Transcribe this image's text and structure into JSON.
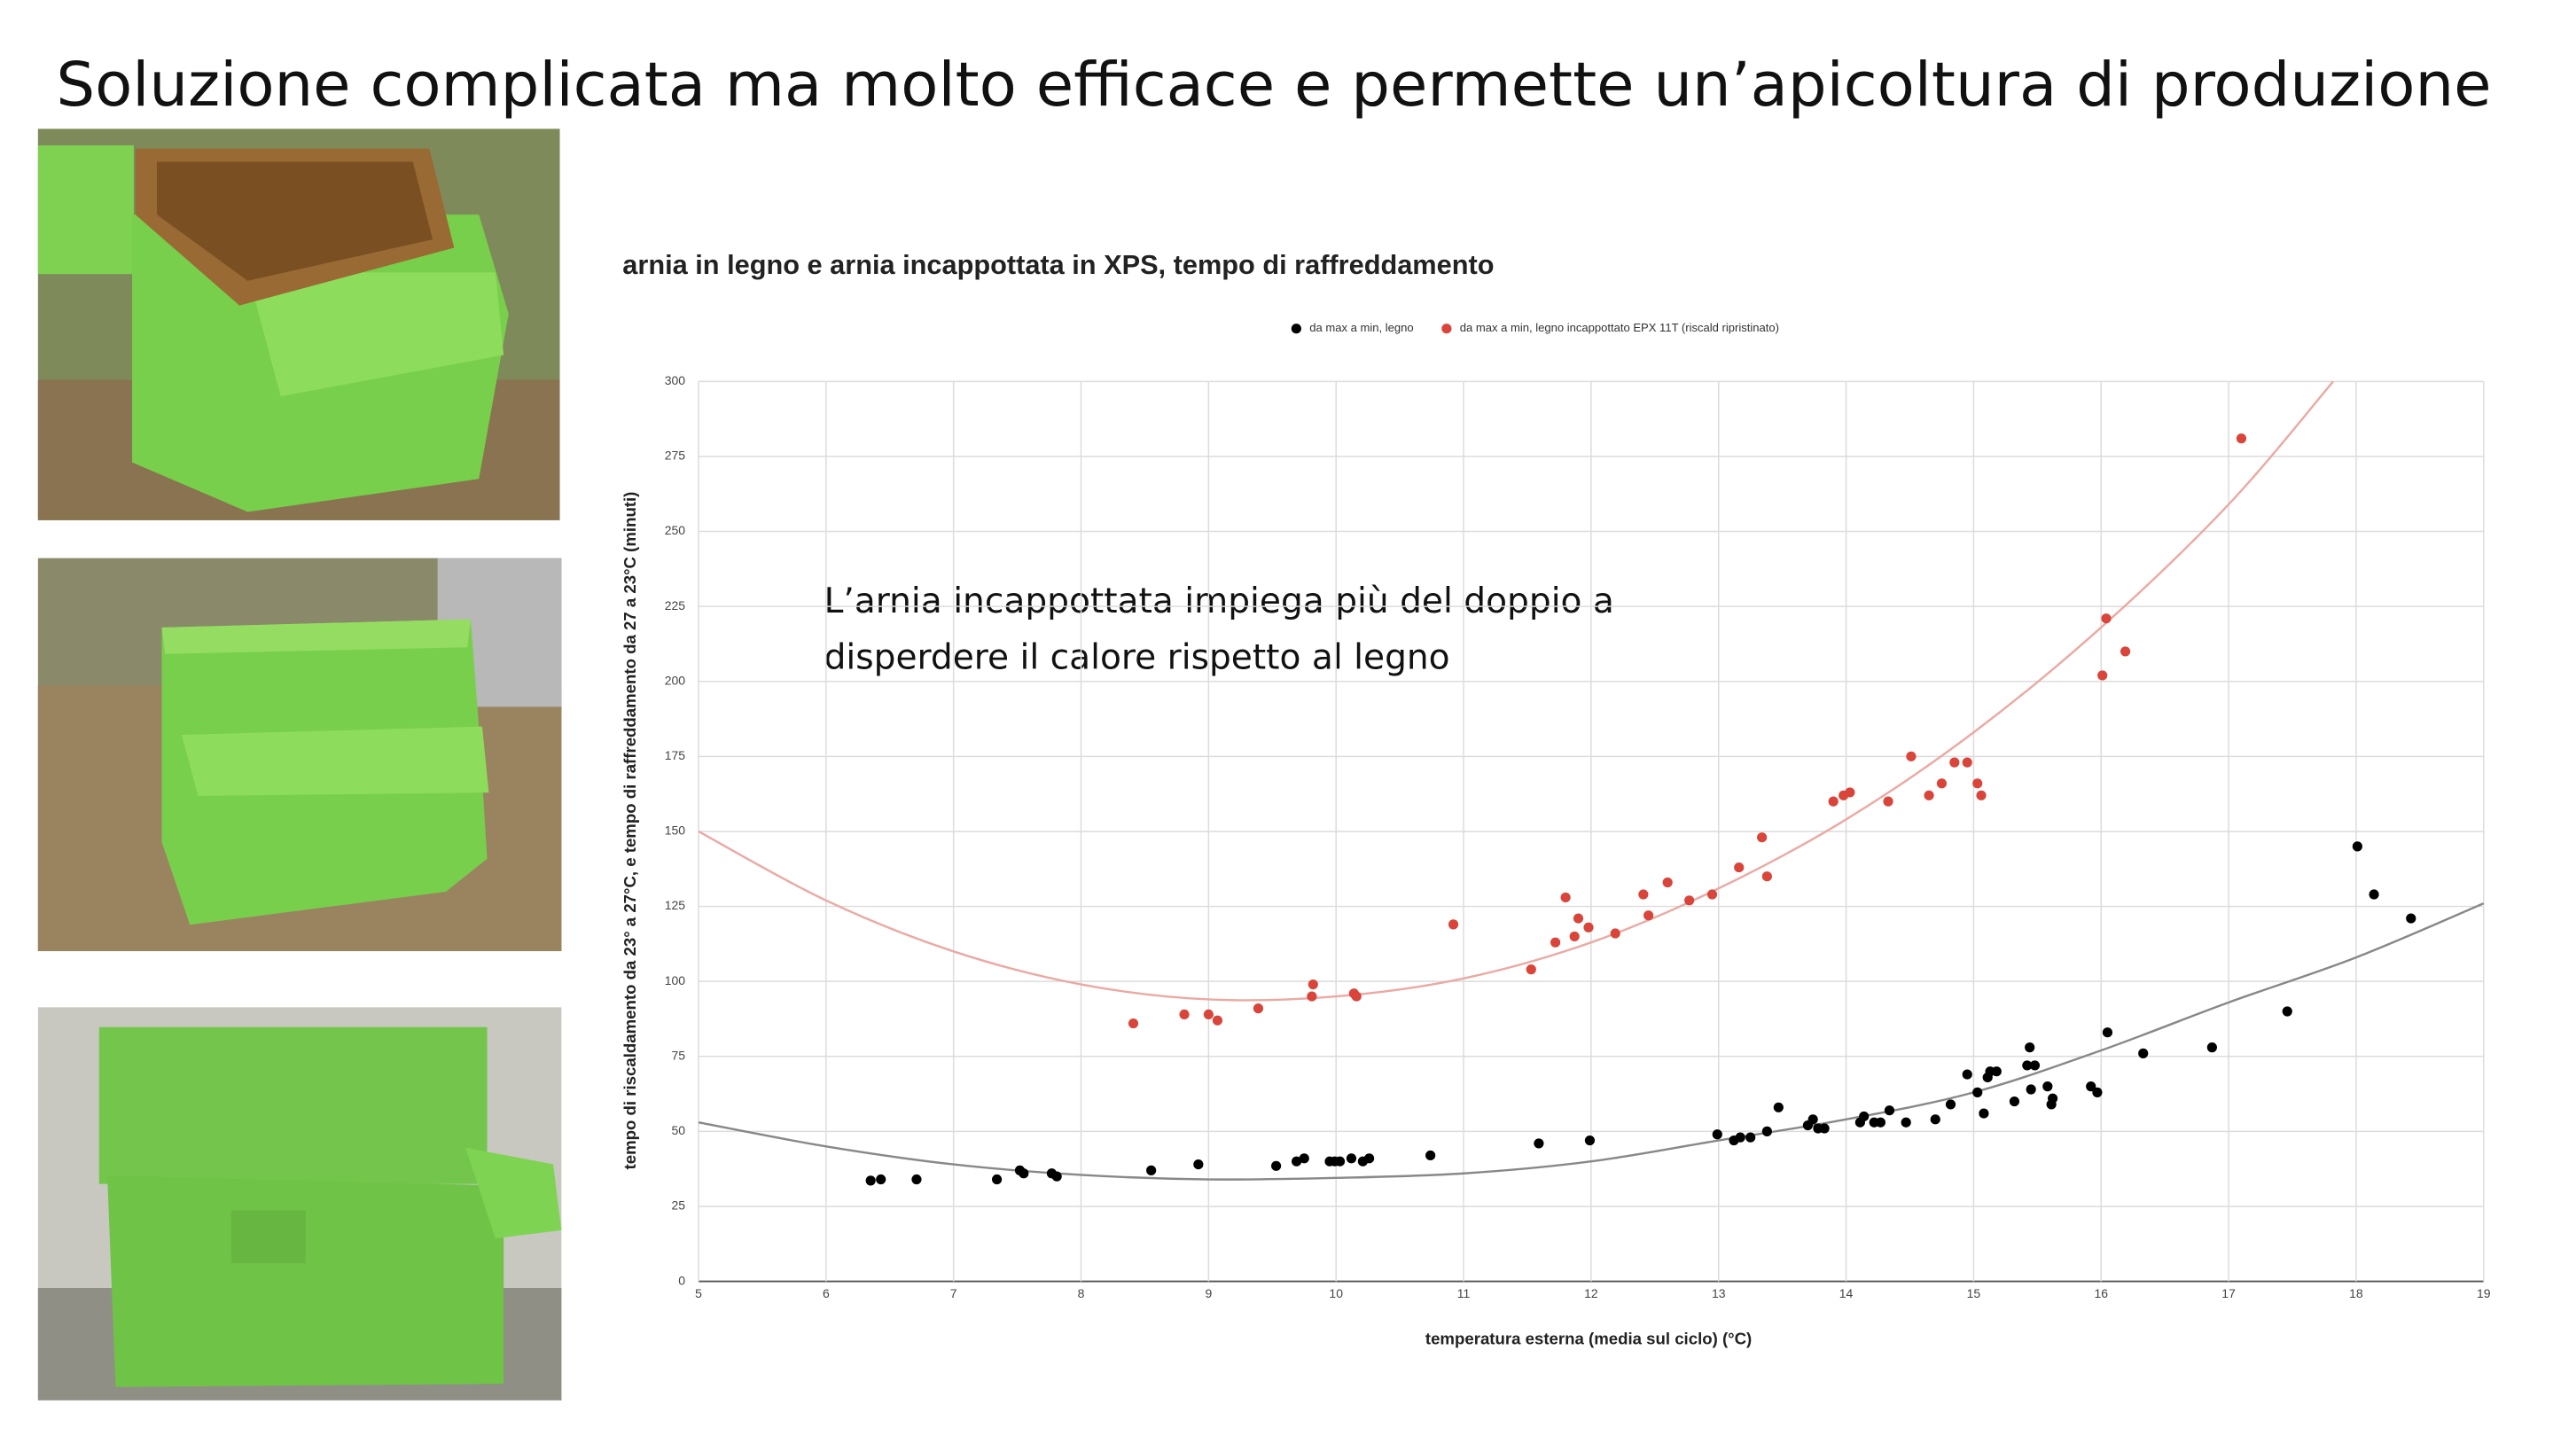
{
  "slide_title": "Soluzione complicata ma molto efficace e permette un’apicoltura di produzione",
  "chart_data": {
    "type": "scatter",
    "title": "arnia in legno e arnia incappottata in XPS, tempo di raffreddamento",
    "x_label": "temperatura esterna (media sul ciclo) (°C)",
    "y_label": "tempo di riscaldamento da 23° a 27°C, e tempo di raffreddamento da 27 a 23°C (minuti)",
    "annotation": [
      "L’arnia incappottata impiega più del doppio a",
      "disperdere il calore rispetto al legno"
    ],
    "xlim": [
      5,
      19
    ],
    "xticks": [
      5,
      6,
      7,
      8,
      9,
      10,
      11,
      12,
      13,
      14,
      15,
      16,
      17,
      18,
      19
    ],
    "ylim": [
      0,
      300
    ],
    "yticks": [
      0,
      25,
      50,
      75,
      100,
      125,
      150,
      175,
      200,
      225,
      250,
      275,
      300
    ],
    "grid": true,
    "legend": "top",
    "series": [
      {
        "name": "da max a min, legno",
        "color": "#000000",
        "x": [
          6.35,
          6.43,
          6.71,
          7.34,
          7.52,
          7.55,
          7.77,
          7.81,
          8.55,
          8.92,
          9.53,
          9.69,
          9.75,
          9.95,
          9.99,
          10.03,
          10.12,
          10.21,
          10.26,
          10.74,
          11.59,
          11.99,
          12.99,
          13.12,
          13.17,
          13.25,
          13.38,
          13.47,
          13.7,
          13.74,
          13.78,
          13.83,
          14.11,
          14.14,
          14.22,
          14.27,
          14.34,
          14.47,
          14.7,
          14.82,
          14.95,
          15.03,
          15.08,
          15.11,
          15.13,
          15.18,
          15.32,
          15.42,
          15.44,
          15.45,
          15.48,
          15.58,
          15.61,
          15.62,
          15.92,
          15.97,
          16.05,
          16.33,
          16.87,
          17.46,
          18.01,
          18.14,
          18.43
        ],
        "values": [
          33.6,
          34,
          34,
          34,
          37,
          36,
          36,
          35,
          37,
          39,
          38.5,
          40,
          41,
          40,
          40,
          40,
          41,
          40,
          41,
          42,
          46,
          47,
          49,
          47,
          48,
          48,
          50,
          58,
          52,
          54,
          51,
          51,
          53,
          55,
          53,
          53,
          57,
          53,
          54,
          59,
          69,
          63,
          56,
          68,
          70,
          70,
          60,
          72,
          78,
          64,
          72,
          65,
          59,
          61,
          65,
          63,
          83,
          76,
          78,
          90,
          145,
          129,
          121
        ],
        "trendline": {
          "color": "#888888",
          "x": [
            5,
            6,
            7,
            8,
            9,
            10,
            11,
            12,
            13,
            14,
            15,
            16,
            17,
            18,
            19
          ],
          "values": [
            53,
            45,
            39,
            35.5,
            34,
            34.5,
            36,
            40,
            47,
            54,
            63,
            77,
            93,
            108,
            126
          ]
        }
      },
      {
        "name": "da max a min, legno incappottato EPX 11T  (riscald ripristinato)",
        "color": "#d9453a",
        "x": [
          8.41,
          8.81,
          9.0,
          9.07,
          9.39,
          9.82,
          9.81,
          10.14,
          10.16,
          10.92,
          11.53,
          11.72,
          11.8,
          11.87,
          11.9,
          11.98,
          12.19,
          12.41,
          12.45,
          12.6,
          12.77,
          12.95,
          13.16,
          13.34,
          13.38,
          13.9,
          13.98,
          14.03,
          14.33,
          14.51,
          14.65,
          14.75,
          14.85,
          14.95,
          15.03,
          15.06,
          16.01,
          16.04,
          16.19,
          17.1
        ],
        "values": [
          86,
          89,
          89,
          87,
          91,
          99,
          95,
          96,
          95,
          119,
          104,
          113,
          128,
          115,
          121,
          118,
          116,
          129,
          122,
          133,
          127,
          129,
          138,
          148,
          135,
          160,
          162,
          163,
          160,
          175,
          162,
          166,
          173,
          173,
          166,
          162,
          202,
          221,
          210,
          281
        ],
        "trendline": {
          "color": "#eba9a3",
          "x": [
            5,
            6,
            7,
            8,
            9,
            10,
            11,
            12,
            13,
            14,
            15,
            16,
            17,
            17.82
          ],
          "values": [
            150,
            127,
            110,
            99,
            94,
            95,
            101,
            113,
            131,
            154,
            183,
            218,
            259,
            300
          ]
        }
      }
    ]
  }
}
